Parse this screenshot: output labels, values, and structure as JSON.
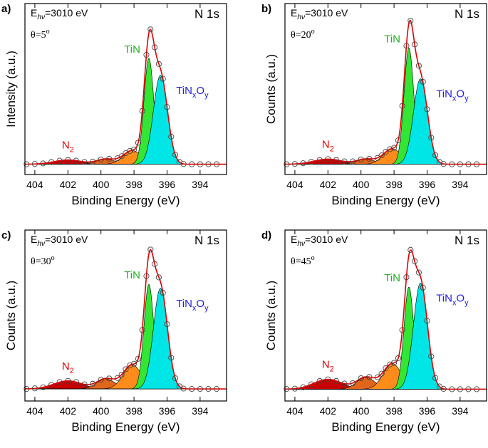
{
  "chart_data": [
    {
      "type": "xps",
      "panel": "a)",
      "energy": [
        "E",
        "hν",
        "=3010 eV"
      ],
      "angle": [
        "θ=5",
        "o"
      ],
      "core_level": "N 1s",
      "xlabel": "Binding Energy (eV)",
      "ylabel": "Intensity (a.u.)",
      "xlim": [
        404.6,
        392.4
      ],
      "xticks": [
        404,
        402,
        400,
        398,
        396,
        394
      ],
      "ylim": [
        0,
        100
      ],
      "background": 6,
      "x": [
        404.5,
        404,
        403.5,
        403,
        402.5,
        402,
        401.5,
        401,
        400.5,
        400,
        399.5,
        399,
        398.75,
        398.5,
        398.25,
        398,
        397.75,
        397.5,
        397.25,
        397,
        396.75,
        396.5,
        396.25,
        396,
        395.75,
        395.5,
        395.25,
        395,
        394.5,
        394,
        393.5,
        393
      ],
      "values": [
        6.0,
        6.2,
        6.5,
        7.3,
        8.1,
        8.5,
        8.1,
        7.4,
        7.6,
        8.8,
        9.2,
        9.5,
        10.7,
        12.5,
        13.8,
        14.6,
        18.6,
        37.2,
        70.0,
        84.9,
        74.4,
        64.7,
        56.0,
        39.5,
        22.1,
        11.5,
        7.3,
        6.2,
        6.0,
        6.0,
        6.0,
        6.0
      ],
      "marker_color": "#444444",
      "fit_color": "#e00000",
      "components": [
        {
          "label": [
            "N",
            "2"
          ],
          "label_color": "#e00000",
          "color": "#c80000",
          "center": 402,
          "height": 2.5,
          "fwhm": 2
        },
        {
          "color": "#e0661b",
          "center": 399.7,
          "height": 3,
          "fwhm": 1.3
        },
        {
          "color": "#ff8c1a",
          "center": 398.1,
          "height": 8,
          "fwhm": 1.3
        },
        {
          "label": [
            "TiN"
          ],
          "label_color": "#1fb01f",
          "color": "#33e633",
          "center": 397.1,
          "height": 62,
          "fwhm": 0.7
        },
        {
          "label": [
            "TiN",
            "x",
            "O",
            "y"
          ],
          "label_color": "#2020dd",
          "color": "#00e6e6",
          "center": 396.4,
          "height": 52,
          "fwhm": 1
        }
      ]
    },
    {
      "type": "xps",
      "panel": "b)",
      "energy": [
        "E",
        "hν",
        "=3010 eV"
      ],
      "angle": [
        "θ=20",
        "o"
      ],
      "core_level": "N 1s",
      "xlabel": "Binding Energy (eV)",
      "ylabel": "Counts (a.u.)",
      "xlim": [
        404.6,
        392.4
      ],
      "xticks": [
        404,
        402,
        400,
        398,
        396,
        394
      ],
      "ylim": [
        0,
        100
      ],
      "background": 6,
      "x": [
        404.5,
        404,
        403.5,
        403,
        402.5,
        402,
        401.5,
        401,
        400.5,
        400,
        399.5,
        399,
        398.75,
        398.5,
        398.25,
        398,
        397.75,
        397.5,
        397.25,
        397,
        396.75,
        396.5,
        396.25,
        396,
        395.75,
        395.5,
        395.25,
        395,
        394.5,
        394,
        393.5,
        393
      ],
      "values": [
        6.0,
        6.2,
        6.6,
        7.5,
        8.5,
        9.0,
        8.5,
        7.7,
        7.7,
        8.8,
        9.2,
        9.7,
        11.2,
        13.3,
        14.8,
        15.6,
        20.0,
        40.1,
        75.3,
        90.0,
        76.1,
        63.6,
        54.2,
        38.2,
        21.5,
        11.3,
        7.3,
        6.2,
        6.0,
        6.0,
        6.0,
        6.0
      ],
      "marker_color": "#444444",
      "fit_color": "#e00000",
      "components": [
        {
          "label": [
            "N",
            "2"
          ],
          "label_color": "#e00000",
          "color": "#c80000",
          "center": 402,
          "height": 3,
          "fwhm": 2
        },
        {
          "color": "#e0661b",
          "center": 399.7,
          "height": 3,
          "fwhm": 1.3
        },
        {
          "color": "#ff8c1a",
          "center": 398.1,
          "height": 9,
          "fwhm": 1.3
        },
        {
          "label": [
            "TiN"
          ],
          "label_color": "#1fb01f",
          "color": "#33e633",
          "center": 397.1,
          "height": 68,
          "fwhm": 0.7
        },
        {
          "label": [
            "TiN",
            "x",
            "O",
            "y"
          ],
          "label_color": "#2020dd",
          "color": "#00e6e6",
          "center": 396.4,
          "height": 50,
          "fwhm": 1
        }
      ]
    },
    {
      "type": "xps",
      "panel": "c)",
      "energy": [
        "E",
        "hν",
        "=3010 eV"
      ],
      "angle": [
        "θ=30",
        "o"
      ],
      "core_level": "N 1s",
      "xlabel": "Binding Energy (eV)",
      "ylabel": "Counts (a.u.)",
      "xlim": [
        404.6,
        392.4
      ],
      "xticks": [
        404,
        402,
        400,
        398,
        396,
        394
      ],
      "ylim": [
        0,
        85
      ],
      "background": 6,
      "x": [
        404.5,
        404,
        403.5,
        403,
        402.5,
        402,
        401.5,
        401,
        400.5,
        400,
        399.5,
        399,
        398.75,
        398.5,
        398.25,
        398,
        397.75,
        397.5,
        397.25,
        397,
        396.75,
        396.5,
        396.25,
        396,
        395.75,
        395.5,
        395.25,
        395,
        394.5,
        394,
        393.5,
        393
      ],
      "values": [
        6.0,
        6.3,
        6.8,
        8.0,
        9.4,
        10.0,
        9.4,
        8.3,
        8.6,
        10.6,
        11.2,
        11.4,
        13.1,
        15.8,
        17.7,
        18.5,
        21.0,
        35.3,
        62.1,
        75.3,
        68.1,
        61.5,
        53.8,
        38.2,
        21.5,
        11.3,
        7.3,
        6.2,
        6.0,
        6.0,
        6.0,
        6.0
      ],
      "marker_color": "#444444",
      "fit_color": "#e00000",
      "components": [
        {
          "label": [
            "N",
            "2"
          ],
          "label_color": "#e00000",
          "color": "#c80000",
          "center": 402,
          "height": 4,
          "fwhm": 2
        },
        {
          "color": "#e0661b",
          "center": 399.7,
          "height": 5,
          "fwhm": 1.3
        },
        {
          "color": "#ff8c1a",
          "center": 398.1,
          "height": 12,
          "fwhm": 1.3
        },
        {
          "label": [
            "TiN"
          ],
          "label_color": "#1fb01f",
          "color": "#33e633",
          "center": 397.1,
          "height": 52,
          "fwhm": 0.7
        },
        {
          "label": [
            "TiN",
            "x",
            "O",
            "y"
          ],
          "label_color": "#2020dd",
          "color": "#00e6e6",
          "center": 396.4,
          "height": 50,
          "fwhm": 1
        }
      ]
    },
    {
      "type": "xps",
      "panel": "d)",
      "energy": [
        "E",
        "hν",
        "=3010 eV"
      ],
      "angle": [
        "θ=45",
        "o"
      ],
      "core_level": "N 1s",
      "xlabel": "Binding Energy (eV)",
      "ylabel": "Counts (a.u.)",
      "xlim": [
        404.6,
        392.4
      ],
      "xticks": [
        404,
        402,
        400,
        398,
        396,
        394
      ],
      "ylim": [
        0,
        87
      ],
      "background": 6,
      "x": [
        404.5,
        404,
        403.5,
        403,
        402.5,
        402,
        401.5,
        401,
        400.5,
        400,
        399.5,
        399,
        398.75,
        398.5,
        398.25,
        398,
        397.75,
        397.5,
        397.25,
        397,
        396.75,
        396.5,
        396.25,
        396,
        395.75,
        395.5,
        395.25,
        395,
        394.5,
        394,
        393.5,
        393
      ],
      "values": [
        6.1,
        6.3,
        7.0,
        8.5,
        10.2,
        11.0,
        10.2,
        8.9,
        9.1,
        11.6,
        12.2,
        12.1,
        13.9,
        16.7,
        18.6,
        19.4,
        21.8,
        36.1,
        63.0,
        76.9,
        71.1,
        65.4,
        57.7,
        40.8,
        22.7,
        11.7,
        7.4,
        6.2,
        6.0,
        6.0,
        6.0,
        6.0
      ],
      "marker_color": "#444444",
      "fit_color": "#e00000",
      "components": [
        {
          "label": [
            "N",
            "2"
          ],
          "label_color": "#e00000",
          "color": "#c80000",
          "center": 402,
          "height": 5,
          "fwhm": 2
        },
        {
          "color": "#e0661b",
          "center": 399.7,
          "height": 6,
          "fwhm": 1.3
        },
        {
          "color": "#ff8c1a",
          "center": 398.1,
          "height": 13,
          "fwhm": 1.3
        },
        {
          "label": [
            "TiN"
          ],
          "label_color": "#1fb01f",
          "color": "#33e633",
          "center": 397.1,
          "height": 52,
          "fwhm": 0.7
        },
        {
          "label": [
            "TiN",
            "x",
            "O",
            "y"
          ],
          "label_color": "#2020dd",
          "color": "#00e6e6",
          "center": 396.4,
          "height": 54,
          "fwhm": 1
        }
      ]
    }
  ]
}
